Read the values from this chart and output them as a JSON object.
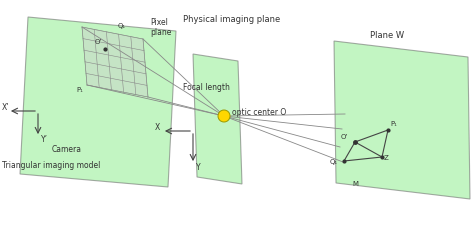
{
  "bg_color": "#ffffff",
  "green_fill": "#90EE90",
  "green_alpha": 0.55,
  "green_edge": "#666666",
  "line_color": "#888888",
  "axis_color": "#444444",
  "optic_center_color": "#FFD700",
  "dot_color": "#333333",
  "text_color": "#333333",
  "labels": {
    "physical_imaging_plane": "Physical imaging plane",
    "pixel_plane": "Pixel\nplane",
    "focal_length": "Focal length",
    "camera": "Camera",
    "triangular_model": "Triangular imaging model",
    "optic_center": "optic center O",
    "plane_w": "Plane W",
    "Q1_pixel": "Q₁",
    "O_pixel": "O’",
    "P1_pixel": "P₁",
    "Xprime": "X’",
    "Yprime": "Y’",
    "X_axis": "X",
    "Y_axis": "Y",
    "O_planeW": "O’",
    "P1_planeW": "P₁",
    "Q1_planeW": "Q₁",
    "Z_planeW": "Z",
    "M_planeW": "M"
  }
}
